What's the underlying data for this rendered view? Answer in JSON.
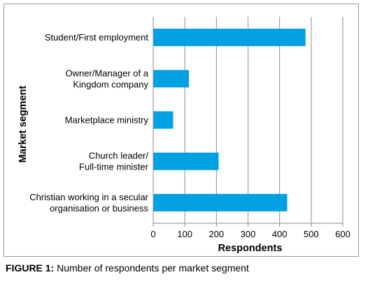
{
  "chart_data": {
    "type": "bar",
    "orientation": "horizontal",
    "categories": [
      [
        "Student/First employment"
      ],
      [
        "Owner/Manager of a",
        "Kingdom company"
      ],
      [
        "Marketplace ministry"
      ],
      [
        "Church leader/",
        "Full-time minister"
      ],
      [
        "Christian working in a secular",
        "organisation or business"
      ]
    ],
    "values": [
      482,
      113,
      63,
      207,
      424
    ],
    "xlabel": "Respondents",
    "ylabel": "Market segment",
    "xlim": [
      0,
      600
    ],
    "xticks": [
      0,
      100,
      200,
      300,
      400,
      500,
      600
    ],
    "grid": "vertical",
    "bar_color": "#00a0e3",
    "grid_color": "#8c8c8c"
  },
  "caption": {
    "label": "FIGURE 1:",
    "text": " Number of respondents per market segment"
  }
}
